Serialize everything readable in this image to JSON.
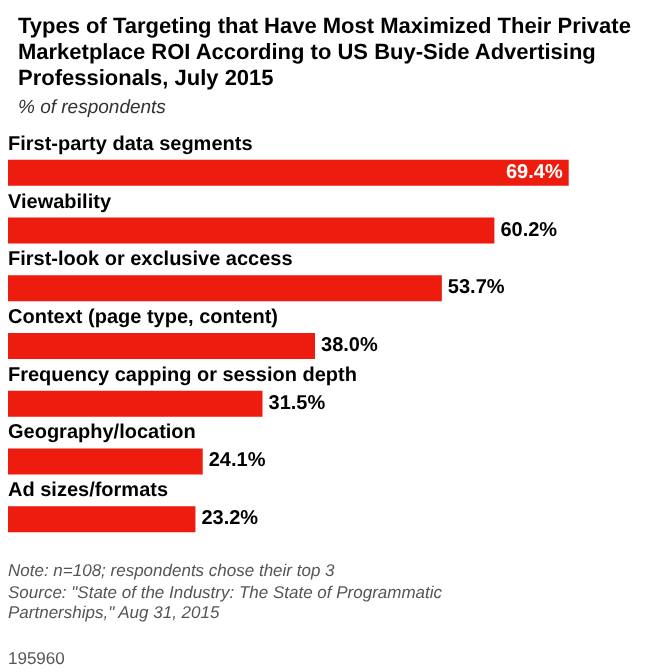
{
  "chart_data": {
    "type": "bar",
    "orientation": "horizontal",
    "title": "Types of Targeting that Have Most Maximized Their Private Marketplace ROI According to US Buy-Side Advertising Professionals, July 2015",
    "subtitle": "% of respondents",
    "categories": [
      "First-party data segments",
      "Viewability",
      "First-look or exclusive access",
      "Context (page type, content)",
      "Frequency capping or session depth",
      "Geography/location",
      "Ad sizes/formats"
    ],
    "values": [
      69.4,
      60.2,
      53.7,
      38.0,
      31.5,
      24.1,
      23.2
    ],
    "value_labels": [
      "69.4%",
      "60.2%",
      "53.7%",
      "38.0%",
      "31.5%",
      "24.1%",
      "23.2%"
    ],
    "color": "#ee1b0f",
    "annotations": [
      "Note: n=108; respondents chose their top 3",
      "Source: \"State of the Industry: The State of Programmatic Partnerships,\" Aug 31, 2015",
      "195960"
    ]
  }
}
